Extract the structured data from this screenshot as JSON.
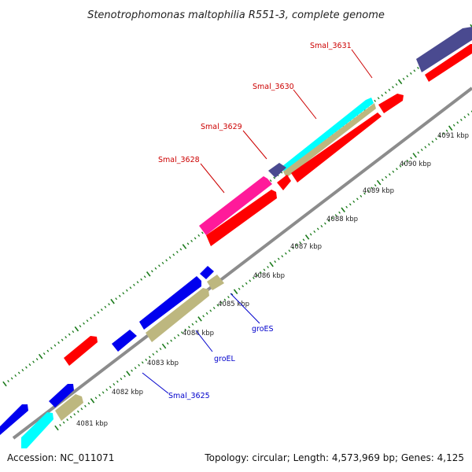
{
  "title": "Stenotrophomonas maltophilia R551-3, complete genome",
  "accession": "Accession: NC_011071",
  "summary": "Topology: circular; Length: 4,573,969 bp; Genes: 4,125",
  "kbp_ticks": [
    "4081 kbp",
    "4082 kbp",
    "4083 kbp",
    "4084 kbp",
    "4085 kbp",
    "4086 kbp",
    "4087 kbp",
    "4088 kbp",
    "4089 kbp",
    "4090 kbp",
    "4091 kbp"
  ],
  "gene_labels": {
    "smal_3631": "Smal_3631",
    "smal_3630": "Smal_3630",
    "smal_3629": "Smal_3629",
    "smal_3628": "Smal_3628",
    "groES": "groES",
    "groEL": "groEL",
    "smal_3625": "Smal_3625"
  },
  "colors": {
    "backbone": "#8c8c8c",
    "tick_green": "#1a7a1a",
    "label_red": "#cc0000",
    "label_blue": "#0000cc",
    "gene_red": "#ff0000",
    "gene_blue": "#0000ee",
    "gene_cyan": "#00ffff",
    "gene_khaki": "#bdb77f",
    "gene_magenta": "#ff1a9a",
    "gene_slate": "#4a4a90"
  }
}
